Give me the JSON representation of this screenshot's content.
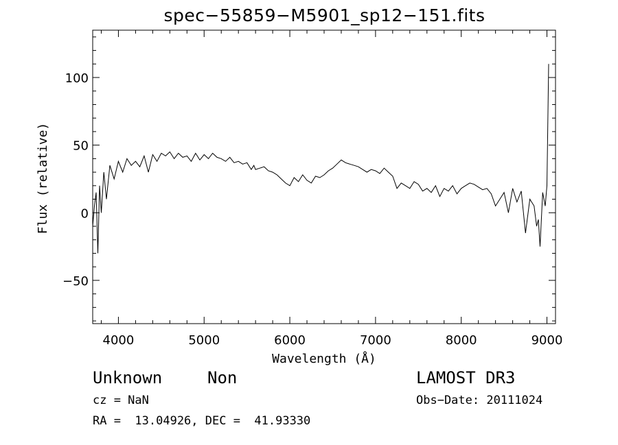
{
  "chart_data": {
    "type": "line",
    "title": "spec−55859−M5901_sp12−151.fits",
    "xlabel": "Wavelength (Å)",
    "ylabel": "Flux (relative)",
    "xlim": [
      3700,
      9100
    ],
    "ylim": [
      -82,
      135
    ],
    "x_ticks": [
      4000,
      5000,
      6000,
      7000,
      8000,
      9000
    ],
    "y_ticks": [
      -50,
      0,
      50,
      100
    ],
    "x_tick_labels": [
      "4000",
      "5000",
      "6000",
      "7000",
      "8000",
      "9000"
    ],
    "y_tick_labels": [
      "−50",
      "0",
      "50",
      "100"
    ],
    "grid": false,
    "series": [
      {
        "color": "#000000",
        "x": [
          3700,
          3720,
          3740,
          3760,
          3780,
          3800,
          3830,
          3860,
          3900,
          3950,
          4000,
          4050,
          4100,
          4150,
          4200,
          4250,
          4300,
          4350,
          4400,
          4450,
          4500,
          4550,
          4600,
          4650,
          4700,
          4750,
          4800,
          4850,
          4900,
          4950,
          5000,
          5050,
          5100,
          5150,
          5200,
          5250,
          5300,
          5350,
          5400,
          5450,
          5500,
          5550,
          5570,
          5580,
          5600,
          5650,
          5700,
          5750,
          5800,
          5850,
          5900,
          5950,
          6000,
          6050,
          6100,
          6150,
          6200,
          6250,
          6300,
          6350,
          6400,
          6450,
          6500,
          6550,
          6600,
          6650,
          6700,
          6750,
          6800,
          6850,
          6900,
          6950,
          7000,
          7050,
          7100,
          7150,
          7200,
          7250,
          7300,
          7350,
          7400,
          7450,
          7500,
          7550,
          7600,
          7650,
          7700,
          7750,
          7800,
          7850,
          7900,
          7950,
          8000,
          8050,
          8100,
          8150,
          8200,
          8250,
          8300,
          8350,
          8400,
          8450,
          8500,
          8550,
          8600,
          8650,
          8700,
          8750,
          8800,
          8850,
          8880,
          8900,
          8920,
          8950,
          8980,
          9000,
          9020
        ],
        "y": [
          -10,
          5,
          15,
          -30,
          20,
          0,
          30,
          10,
          35,
          25,
          38,
          30,
          40,
          35,
          38,
          34,
          42,
          30,
          43,
          38,
          44,
          42,
          45,
          40,
          44,
          41,
          42,
          38,
          44,
          39,
          43,
          40,
          44,
          41,
          40,
          38,
          41,
          37,
          38,
          36,
          37,
          32,
          34,
          35,
          32,
          33,
          34,
          31,
          30,
          28,
          25,
          22,
          20,
          26,
          23,
          28,
          24,
          22,
          27,
          26,
          28,
          31,
          33,
          36,
          39,
          37,
          36,
          35,
          34,
          32,
          30,
          32,
          31,
          29,
          33,
          30,
          27,
          18,
          22,
          20,
          18,
          23,
          21,
          16,
          18,
          15,
          20,
          12,
          18,
          16,
          20,
          14,
          18,
          20,
          22,
          21,
          19,
          17,
          18,
          14,
          5,
          10,
          15,
          0,
          18,
          8,
          16,
          -15,
          10,
          5,
          -10,
          -5,
          -25,
          15,
          5,
          20,
          110
        ]
      }
    ]
  },
  "info": {
    "object": "Unknown",
    "class": "Non",
    "survey": "LAMOST DR3",
    "cz": "cz = NaN",
    "obs_date": "Obs−Date: 20111024",
    "coords": "RA =  13.04926, DEC =  41.93330"
  }
}
